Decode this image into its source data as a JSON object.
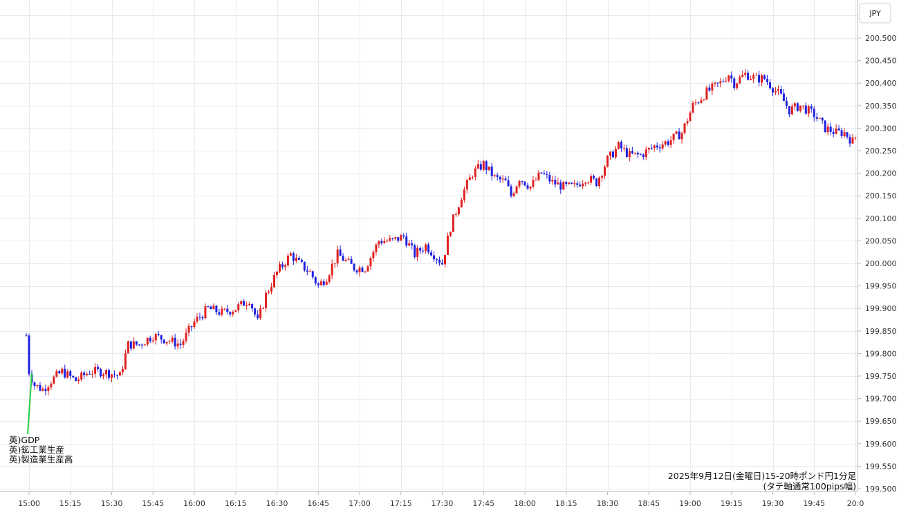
{
  "chart_data": {
    "type": "candlestick",
    "currency_label": "JPY",
    "caption_lines": [
      "2025年9月12日(金曜日)15-20時ポンド円1分足",
      "(タテ軸通常100pips幅)"
    ],
    "annotation_lines": [
      "英)GDP",
      "英)鉱工業生産",
      "英)製造業生産高"
    ],
    "y_ticks": [
      "200.500",
      "200.450",
      "200.400",
      "200.350",
      "200.300",
      "200.250",
      "200.200",
      "200.150",
      "200.100",
      "200.050",
      "200.000",
      "199.950",
      "199.900",
      "199.850",
      "199.800",
      "199.750",
      "199.700",
      "199.650",
      "199.600",
      "199.550",
      "199.500"
    ],
    "x_ticks": [
      "15:00",
      "15:15",
      "15:30",
      "15:45",
      "16:00",
      "16:15",
      "16:30",
      "16:45",
      "17:00",
      "17:15",
      "17:30",
      "17:45",
      "18:00",
      "18:15",
      "18:30",
      "18:45",
      "19:00",
      "19:15",
      "19:30",
      "19:45",
      "20:0"
    ],
    "ylim": [
      199.5,
      200.5
    ],
    "grid": true,
    "up_color": "#e02020",
    "down_color": "#2020e0",
    "annotation_line_color": "#22cc44",
    "path_anchors": [
      [
        -1,
        199.84
      ],
      [
        0,
        199.76
      ],
      [
        2,
        199.73
      ],
      [
        5,
        199.72
      ],
      [
        8,
        199.74
      ],
      [
        12,
        199.76
      ],
      [
        17,
        199.74
      ],
      [
        22,
        199.76
      ],
      [
        27,
        199.76
      ],
      [
        33,
        199.75
      ],
      [
        36,
        199.82
      ],
      [
        40,
        199.82
      ],
      [
        45,
        199.84
      ],
      [
        50,
        199.83
      ],
      [
        55,
        199.82
      ],
      [
        60,
        199.87
      ],
      [
        65,
        199.9
      ],
      [
        70,
        199.89
      ],
      [
        75,
        199.9
      ],
      [
        80,
        199.92
      ],
      [
        83,
        199.87
      ],
      [
        86,
        199.93
      ],
      [
        90,
        199.98
      ],
      [
        95,
        200.02
      ],
      [
        98,
        200.0
      ],
      [
        102,
        199.98
      ],
      [
        105,
        199.95
      ],
      [
        108,
        199.97
      ],
      [
        112,
        200.02
      ],
      [
        118,
        199.99
      ],
      [
        122,
        199.99
      ],
      [
        127,
        200.05
      ],
      [
        132,
        200.05
      ],
      [
        136,
        200.06
      ],
      [
        140,
        200.02
      ],
      [
        144,
        200.04
      ],
      [
        147,
        200.02
      ],
      [
        150,
        200.0
      ],
      [
        153,
        200.08
      ],
      [
        157,
        200.15
      ],
      [
        161,
        200.2
      ],
      [
        165,
        200.22
      ],
      [
        169,
        200.19
      ],
      [
        173,
        200.18
      ],
      [
        175,
        200.15
      ],
      [
        178,
        200.19
      ],
      [
        182,
        200.17
      ],
      [
        186,
        200.2
      ],
      [
        190,
        200.18
      ],
      [
        194,
        200.17
      ],
      [
        198,
        200.17
      ],
      [
        202,
        200.19
      ],
      [
        206,
        200.18
      ],
      [
        210,
        200.23
      ],
      [
        214,
        200.26
      ],
      [
        218,
        200.24
      ],
      [
        222,
        200.24
      ],
      [
        227,
        200.26
      ],
      [
        232,
        200.27
      ],
      [
        237,
        200.29
      ],
      [
        241,
        200.35
      ],
      [
        246,
        200.38
      ],
      [
        251,
        200.4
      ],
      [
        254,
        200.42
      ],
      [
        256,
        200.4
      ],
      [
        260,
        200.42
      ],
      [
        264,
        200.41
      ],
      [
        267,
        200.41
      ],
      [
        270,
        200.39
      ],
      [
        273,
        200.37
      ],
      [
        276,
        200.34
      ],
      [
        280,
        200.35
      ],
      [
        285,
        200.33
      ],
      [
        289,
        200.3
      ],
      [
        293,
        200.29
      ],
      [
        296,
        200.29
      ],
      [
        299,
        200.27
      ],
      [
        302,
        200.3
      ],
      [
        303,
        200.33
      ]
    ]
  }
}
